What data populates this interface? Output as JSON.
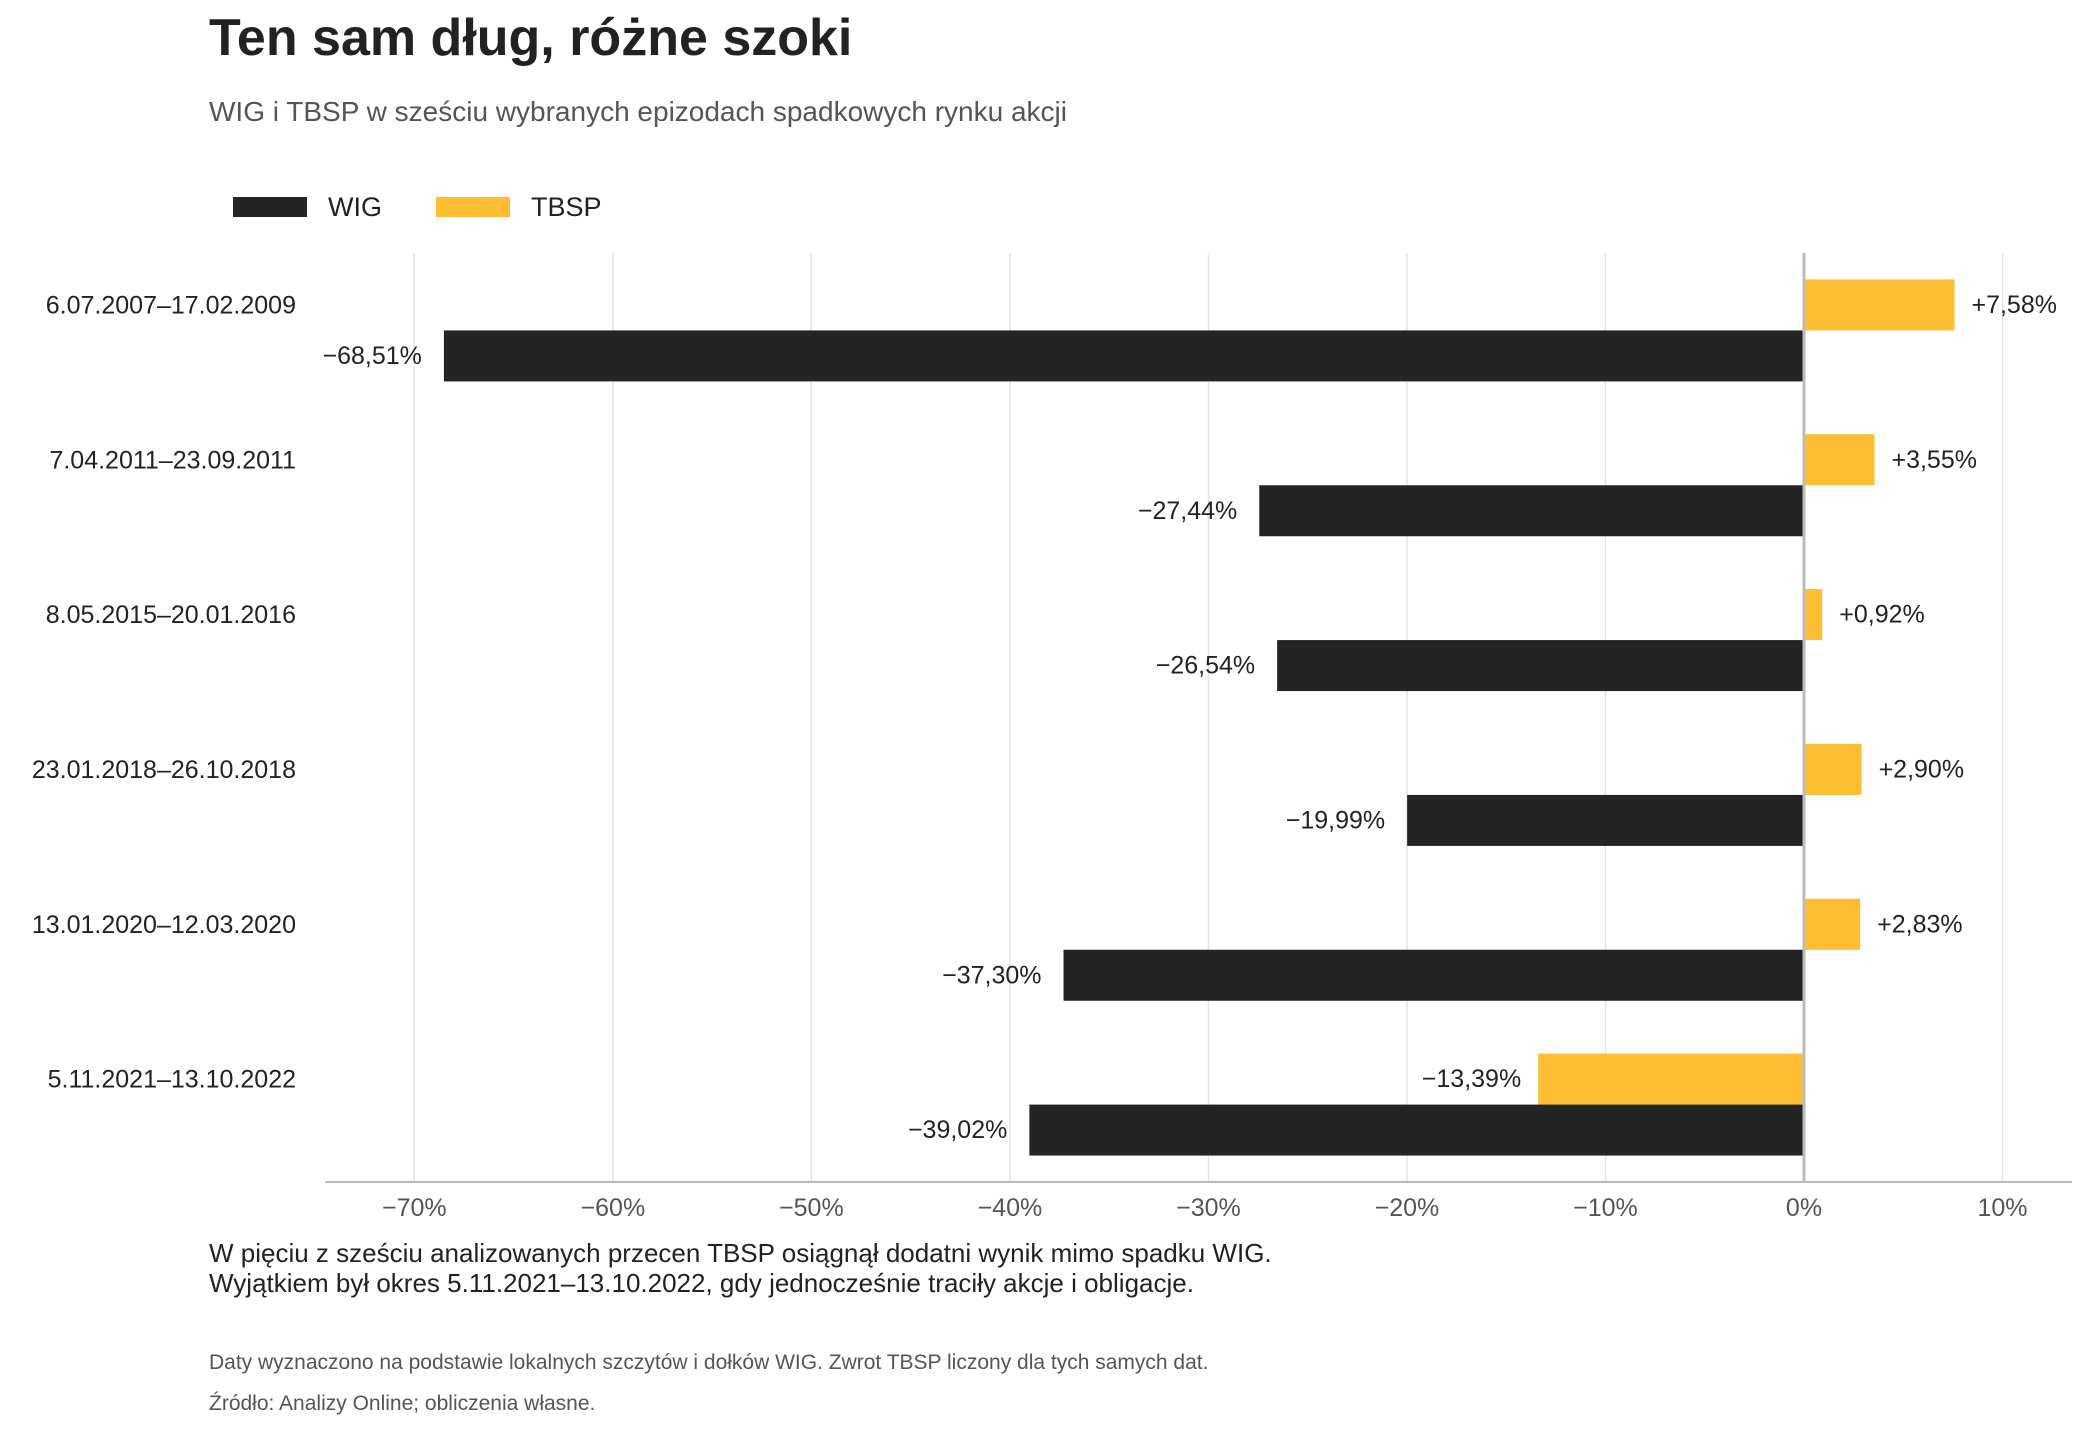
{
  "header": {
    "title": "Ten sam dług, różne szoki",
    "subtitle": "WIG i TBSP w sześciu wybranych epizodach spadkowych rynku akcji"
  },
  "colors": {
    "wig": "#242424",
    "tbsp": "#FDBE33",
    "grid": "#E3E3E3",
    "axis": "#BBBBBB",
    "text": "#222222",
    "muted": "#555555"
  },
  "chart_data": {
    "type": "bar",
    "orientation": "horizontal",
    "categories": [
      "6.07.2007–17.02.2009",
      "7.04.2011–23.09.2011",
      "8.05.2015–20.01.2016",
      "23.01.2018–26.10.2018",
      "13.01.2020–12.03.2020",
      "5.11.2021–13.10.2022"
    ],
    "series": [
      {
        "name": "WIG",
        "values": [
          -68.51,
          -27.44,
          -26.54,
          -19.99,
          -37.3,
          -39.02
        ],
        "labels": [
          "−68,51%",
          "−27,44%",
          "−26,54%",
          "−19,99%",
          "−37,30%",
          "−39,02%"
        ]
      },
      {
        "name": "TBSP",
        "values": [
          7.58,
          3.55,
          0.92,
          2.9,
          2.83,
          -13.39
        ],
        "labels": [
          "+7,58%",
          "+3,55%",
          "+0,92%",
          "+2,90%",
          "+2,83%",
          "−13,39%"
        ]
      }
    ],
    "xlim": [
      -74.5,
      13.5
    ],
    "xticks": [
      -70,
      -60,
      -50,
      -40,
      -30,
      -20,
      -10,
      0,
      10
    ],
    "xtick_labels": [
      "−70%",
      "−60%",
      "−50%",
      "−40%",
      "−30%",
      "−20%",
      "−10%",
      "0%",
      "10%"
    ],
    "grid": "vertical",
    "legend": "top-left"
  },
  "notes": {
    "line1": "W pięciu z sześciu analizowanych przecen TBSP osiągnął dodatni wynik mimo spadku WIG.",
    "line2": "Wyjątkiem był okres 5.11.2021–13.10.2022, gdy jednocześnie traciły akcje i obligacje.",
    "method": "Daty wyznaczono na podstawie lokalnych szczytów i dołków WIG. Zwrot TBSP liczony dla tych samych dat.",
    "source": "Źródło: Analizy Online; obliczenia własne."
  }
}
